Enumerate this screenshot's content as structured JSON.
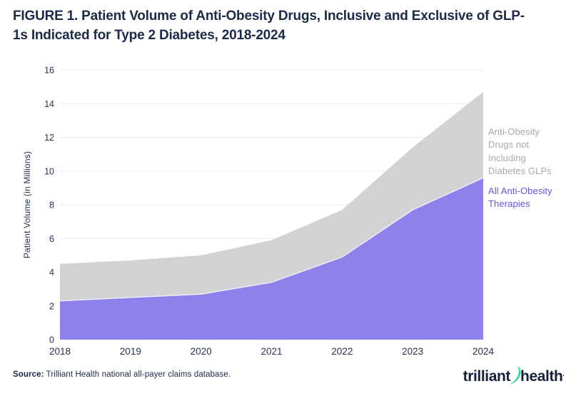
{
  "header": {
    "title": "FIGURE 1. Patient Volume of Anti-Obesity Drugs, Inclusive and Exclusive of GLP-1s Indicated for Type 2 Diabetes, 2018-2024"
  },
  "chart_data": {
    "type": "area",
    "stacked": true,
    "x": [
      "2018",
      "2019",
      "2020",
      "2021",
      "2022",
      "2023",
      "2024"
    ],
    "ylabel": "Patient Volume (in Millions)",
    "ylim": [
      0,
      16
    ],
    "yticks": [
      0,
      2,
      4,
      6,
      8,
      10,
      12,
      14,
      16
    ],
    "grid": "horizontal",
    "legend_position": "right",
    "gridline_color": "#ececee",
    "axis_text_color": "#24324f",
    "series": [
      {
        "name": "Anti-Obesity Drugs not Including Diabetes GLPs",
        "fill": "#d2d2d4",
        "label_color": "#a8a8ab",
        "upper_boundary": [
          4.5,
          4.7,
          5.0,
          5.9,
          7.7,
          11.4,
          14.7
        ]
      },
      {
        "name": "All Anti-Obesity Therapies",
        "fill": "#8d82eb",
        "label_color": "#6355e8",
        "upper_boundary": [
          2.3,
          2.5,
          2.7,
          3.4,
          4.9,
          7.7,
          9.6
        ]
      }
    ]
  },
  "footer": {
    "source_label": "Source:",
    "source_text": " Trilliant Health national all-payer claims database.",
    "logo": {
      "word1": "trilliant",
      "word2": "health",
      "trademark": "'",
      "swoosh_color_top": "#45e6a7",
      "swoosh_color_bottom": "#00c389"
    }
  }
}
